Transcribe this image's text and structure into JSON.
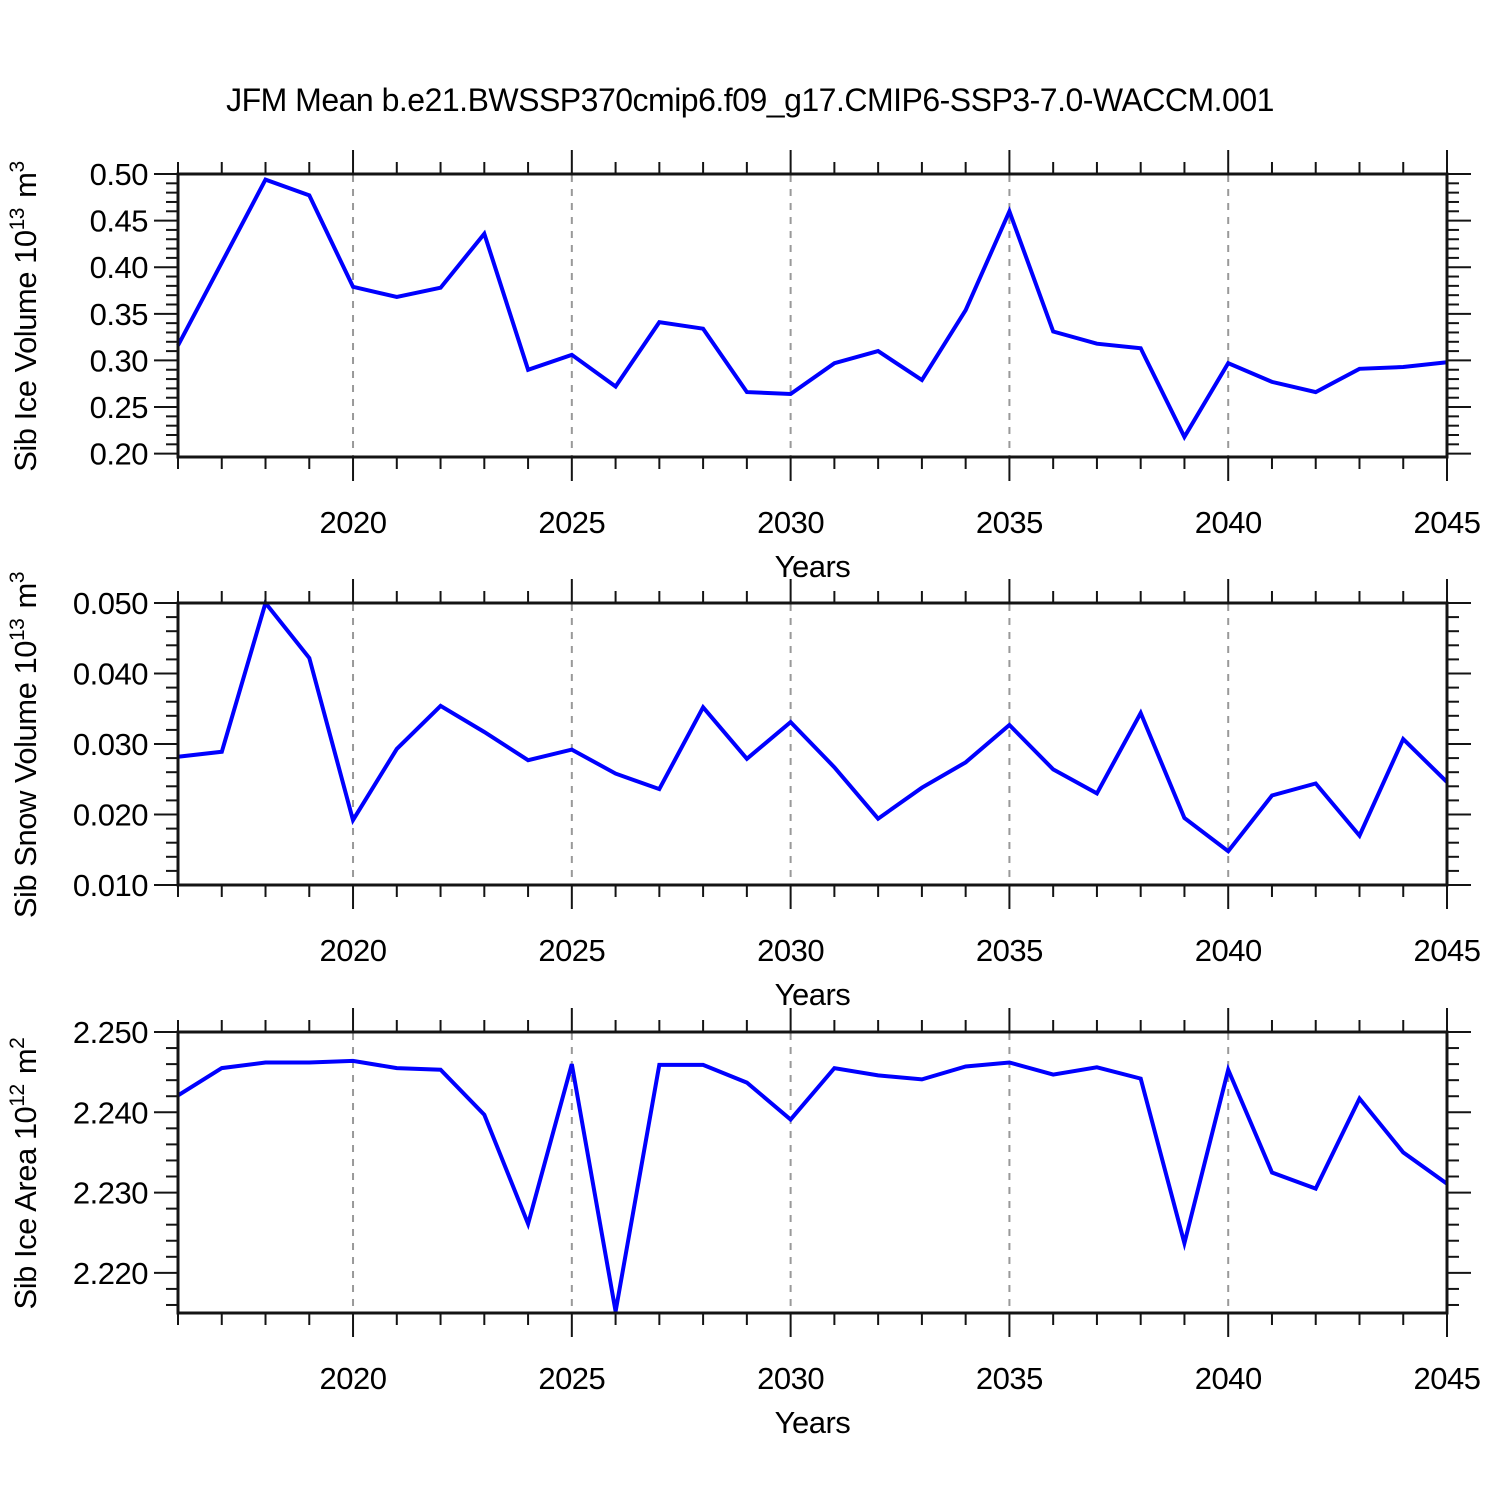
{
  "title": "JFM Mean b.e21.BWSSP370cmip6.f09_g17.CMIP6-SSP3-7.0-WACCM.001",
  "xlabel": "Years",
  "colors": {
    "line": "#0000fe",
    "grid": "#999999",
    "axis": "#141414",
    "text": "#000000"
  },
  "x": {
    "min": 2016,
    "max": 2045,
    "years": [
      2016,
      2017,
      2018,
      2019,
      2020,
      2021,
      2022,
      2023,
      2024,
      2025,
      2026,
      2027,
      2028,
      2029,
      2030,
      2031,
      2032,
      2033,
      2034,
      2035,
      2036,
      2037,
      2038,
      2039,
      2040,
      2041,
      2042,
      2043,
      2044,
      2045
    ],
    "labeled_ticks": [
      2020,
      2025,
      2030,
      2035,
      2040,
      2045
    ],
    "tick_labels": [
      "2020",
      "2025",
      "2030",
      "2035",
      "2040",
      "2045"
    ],
    "grid_years": [
      2020,
      2025,
      2030,
      2035,
      2040
    ]
  },
  "chart_data": [
    {
      "type": "line",
      "name": "sib-ice-volume",
      "ylabel": "Sib Ice Volume 10¹³ m³",
      "ylabel_parts": [
        {
          "text": "Sib Ice Volume 10",
          "sup": false
        },
        {
          "text": "13",
          "sup": true
        },
        {
          "text": " m",
          "sup": false
        },
        {
          "text": "3",
          "sup": true
        }
      ],
      "xlabel": "Years",
      "ylim": [
        0.1964,
        0.5
      ],
      "yticks": [
        0.2,
        0.25,
        0.3,
        0.35,
        0.4,
        0.45,
        0.5
      ],
      "ytick_labels": [
        "0.20",
        "0.25",
        "0.30",
        "0.35",
        "0.40",
        "0.45",
        "0.50"
      ],
      "y_minor_step": 0.01,
      "grid": true,
      "legend": "none",
      "x": [
        2016,
        2017,
        2018,
        2019,
        2020,
        2021,
        2022,
        2023,
        2024,
        2025,
        2026,
        2027,
        2028,
        2029,
        2030,
        2031,
        2032,
        2033,
        2034,
        2035,
        2036,
        2037,
        2038,
        2039,
        2040,
        2041,
        2042,
        2043,
        2044,
        2045
      ],
      "values": [
        0.316,
        0.405,
        0.494,
        0.477,
        0.379,
        0.368,
        0.378,
        0.436,
        0.29,
        0.306,
        0.272,
        0.341,
        0.334,
        0.266,
        0.264,
        0.297,
        0.31,
        0.279,
        0.354,
        0.46,
        0.331,
        0.318,
        0.313,
        0.218,
        0.297,
        0.277,
        0.266,
        0.291,
        0.293,
        0.298
      ]
    },
    {
      "type": "line",
      "name": "sib-snow-volume",
      "ylabel": "Sib Snow Volume 10¹³ m³",
      "ylabel_parts": [
        {
          "text": "Sib Snow Volume 10",
          "sup": false
        },
        {
          "text": "13",
          "sup": true
        },
        {
          "text": " m",
          "sup": false
        },
        {
          "text": "3",
          "sup": true
        }
      ],
      "xlabel": "Years",
      "ylim": [
        0.01,
        0.05
      ],
      "yticks": [
        0.01,
        0.02,
        0.03,
        0.04,
        0.05
      ],
      "ytick_labels": [
        "0.010",
        "0.020",
        "0.030",
        "0.040",
        "0.050"
      ],
      "y_minor_step": 0.002,
      "grid": true,
      "legend": "none",
      "x": [
        2016,
        2017,
        2018,
        2019,
        2020,
        2021,
        2022,
        2023,
        2024,
        2025,
        2026,
        2027,
        2028,
        2029,
        2030,
        2031,
        2032,
        2033,
        2034,
        2035,
        2036,
        2037,
        2038,
        2039,
        2040,
        2041,
        2042,
        2043,
        2044,
        2045
      ],
      "values": [
        0.0282,
        0.0289,
        0.05,
        0.0422,
        0.0192,
        0.0293,
        0.0354,
        0.0317,
        0.0277,
        0.0292,
        0.0258,
        0.0236,
        0.0352,
        0.0279,
        0.0331,
        0.0267,
        0.0194,
        0.0238,
        0.0274,
        0.0327,
        0.0264,
        0.023,
        0.0344,
        0.0195,
        0.0148,
        0.0227,
        0.0244,
        0.017,
        0.0307,
        0.0246
      ]
    },
    {
      "type": "line",
      "name": "sib-ice-area",
      "ylabel": "Sib Ice Area 10¹² m²",
      "ylabel_parts": [
        {
          "text": "Sib Ice Area 10",
          "sup": false
        },
        {
          "text": "12",
          "sup": true
        },
        {
          "text": " m",
          "sup": false
        },
        {
          "text": "2",
          "sup": true
        }
      ],
      "xlabel": "Years",
      "ylim": [
        2.215,
        2.25
      ],
      "yticks": [
        2.22,
        2.23,
        2.24,
        2.25
      ],
      "ytick_labels": [
        "2.220",
        "2.230",
        "2.240",
        "2.250"
      ],
      "y_minor_step": 0.002,
      "grid": true,
      "legend": "none",
      "x": [
        2016,
        2017,
        2018,
        2019,
        2020,
        2021,
        2022,
        2023,
        2024,
        2025,
        2026,
        2027,
        2028,
        2029,
        2030,
        2031,
        2032,
        2033,
        2034,
        2035,
        2036,
        2037,
        2038,
        2039,
        2040,
        2041,
        2042,
        2043,
        2044,
        2045
      ],
      "values": [
        2.2421,
        2.2455,
        2.2462,
        2.2462,
        2.2464,
        2.2455,
        2.2453,
        2.2397,
        2.2261,
        2.246,
        2.2152,
        2.2459,
        2.2459,
        2.2437,
        2.2391,
        2.2455,
        2.2446,
        2.2441,
        2.2457,
        2.2462,
        2.2447,
        2.2456,
        2.2442,
        2.2237,
        2.2453,
        2.2325,
        2.2305,
        2.2417,
        2.235,
        2.2311
      ]
    }
  ]
}
